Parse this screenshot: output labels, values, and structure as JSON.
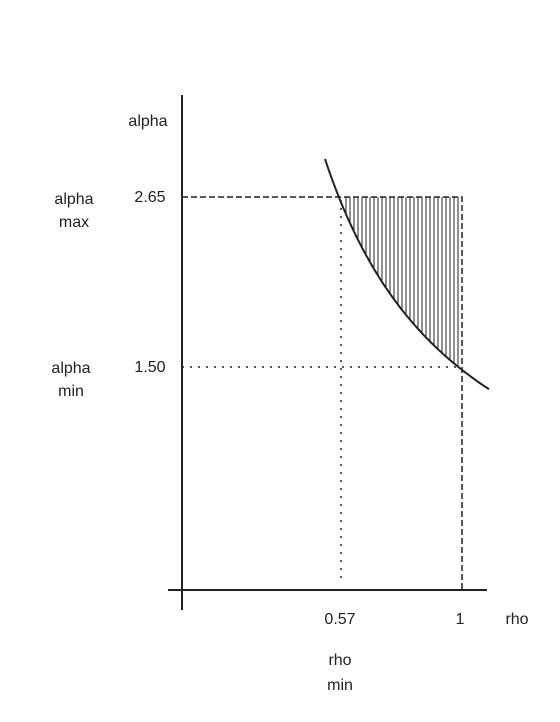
{
  "axes": {
    "y_label": "alpha",
    "x_label": "rho"
  },
  "y_ticks": [
    "2.65",
    "1.50"
  ],
  "x_ticks": [
    "0.57",
    "1"
  ],
  "side_labels": {
    "alpha_max": [
      "alpha",
      "max"
    ],
    "alpha_min": [
      "alpha",
      "min"
    ],
    "rho_min": [
      "rho",
      "min"
    ]
  }
}
